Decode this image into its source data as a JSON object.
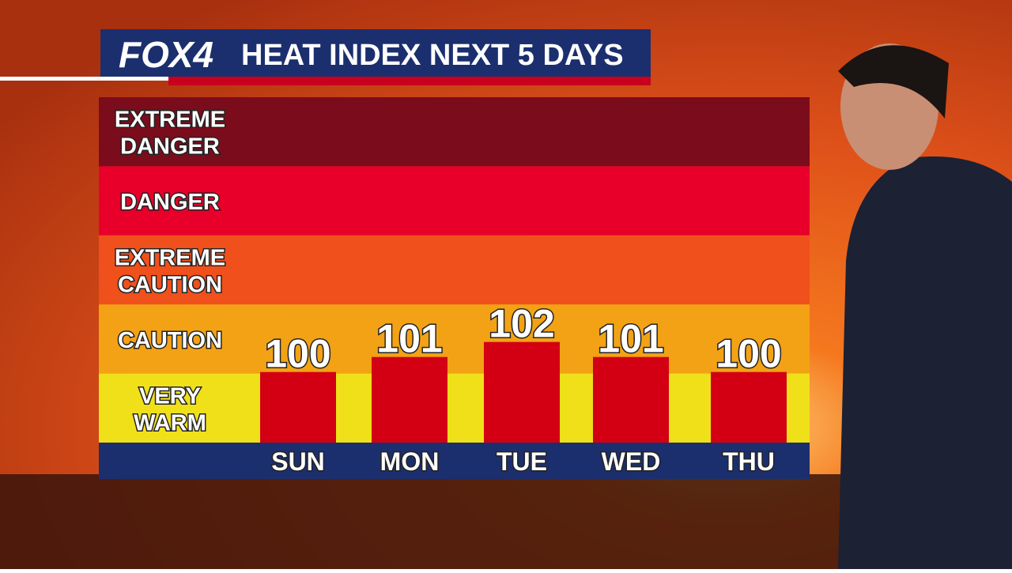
{
  "chart_data": {
    "type": "bar",
    "logo": "FOX4",
    "title": "HEAT INDEX NEXT 5 DAYS",
    "categories": [
      "SUN",
      "MON",
      "TUE",
      "WED",
      "THU"
    ],
    "values": [
      100,
      101,
      102,
      101,
      100
    ],
    "color": "#d20012",
    "ylim": [
      95.3,
      118.3
    ],
    "bands": [
      {
        "lines": [
          "EXTREME",
          "DANGER"
        ],
        "color": "#7b0c1c"
      },
      {
        "lines": [
          "DANGER"
        ],
        "color": "#e8002a"
      },
      {
        "lines": [
          "EXTREME",
          "CAUTION"
        ],
        "color": "#f0501c"
      },
      {
        "lines": [
          "CAUTION"
        ],
        "color": "#f3a215"
      },
      {
        "lines": [
          "VERY",
          "WARM"
        ],
        "color": "#f0e01a"
      }
    ]
  }
}
